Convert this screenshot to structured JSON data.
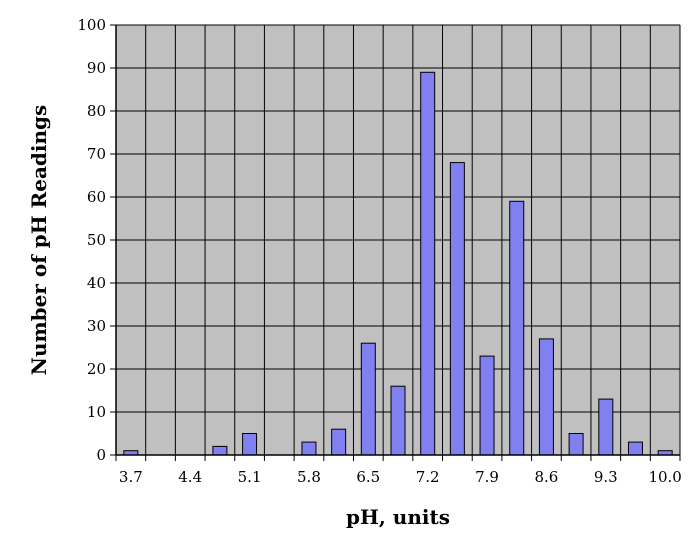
{
  "chart_data": {
    "type": "bar",
    "title": "",
    "xlabel": "pH, units",
    "ylabel": "Number of pH Readings",
    "ylim": [
      0,
      100
    ],
    "yticks": [
      0,
      10,
      20,
      30,
      40,
      50,
      60,
      70,
      80,
      90,
      100
    ],
    "grid": true,
    "categories": [
      "3.7",
      "4.05",
      "4.4",
      "4.75",
      "5.1",
      "5.45",
      "5.8",
      "6.15",
      "6.5",
      "6.85",
      "7.2",
      "7.55",
      "7.9",
      "8.25",
      "8.6",
      "8.95",
      "9.3",
      "9.65",
      "10.0"
    ],
    "xtick_labels": [
      "3.7",
      "4.4",
      "5.1",
      "5.8",
      "6.5",
      "7.2",
      "7.9",
      "8.6",
      "9.3",
      "10.0"
    ],
    "values": [
      1,
      0,
      0,
      2,
      5,
      0,
      3,
      6,
      26,
      16,
      89,
      68,
      23,
      59,
      27,
      5,
      13,
      3,
      1
    ],
    "bar_color": "#8080f0",
    "plot_background": "#c0c0c0",
    "grid_color": "#000000"
  }
}
